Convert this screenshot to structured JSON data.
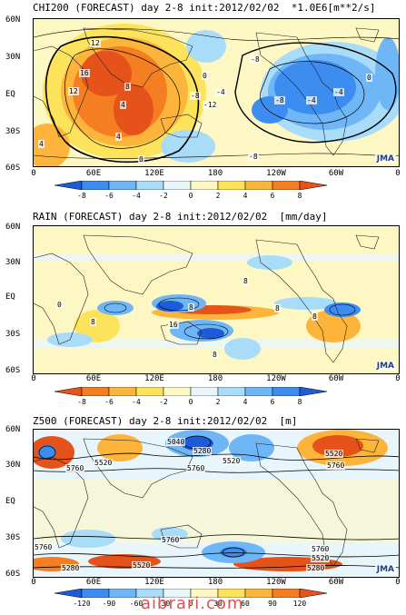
{
  "lat_labels": [
    "60N",
    "30N",
    "EQ",
    "30S",
    "60S"
  ],
  "lon_labels": [
    "0",
    "60E",
    "120E",
    "180",
    "120W",
    "60W",
    "0"
  ],
  "panels": [
    {
      "title": "CHI200 (FORECAST) day 2-8 init:2012/02/02  *1.0E6[m**2/s]",
      "colorbar_ticks": [
        "-8",
        "-6",
        "-4",
        "-2",
        "0",
        "2",
        "4",
        "6",
        "8"
      ],
      "colorbar_colors": [
        "#1e5bd8",
        "#3d8cf0",
        "#6fb6f7",
        "#a9dcf9",
        "#e8f6fb",
        "#fdf7c4",
        "#fde35c",
        "#fcb53a",
        "#f57e22",
        "#e6531a"
      ],
      "contour_labels": [
        "12",
        "16",
        "12",
        "8",
        "4",
        "4",
        "4",
        "0",
        "0",
        "-8",
        "-4",
        "-12",
        "-8",
        "-8",
        "-4",
        "0",
        "-8",
        "-4"
      ],
      "logo": "JMA"
    },
    {
      "title": "RAIN (FORECAST) day 2-8 init:2012/02/02  [mm/day]",
      "colorbar_ticks": [
        "-8",
        "-6",
        "-4",
        "-2",
        "0",
        "2",
        "4",
        "6",
        "8"
      ],
      "colorbar_colors": [
        "#e6531a",
        "#f57e22",
        "#fcb53a",
        "#fde35c",
        "#fdf7c4",
        "#e8f6fb",
        "#a9dcf9",
        "#6fb6f7",
        "#3d8cf0",
        "#1e5bd8"
      ],
      "contour_labels": [
        "8",
        "0",
        "8",
        "16",
        "8",
        "8",
        "8",
        "8"
      ],
      "logo": "JMA"
    },
    {
      "title": "Z500 (FORECAST) day 2-8 init:2012/02/02  [m]",
      "colorbar_ticks": [
        "-120",
        "-90",
        "-60",
        "-30",
        "0",
        "30",
        "60",
        "90",
        "120"
      ],
      "colorbar_colors": [
        "#1e5bd8",
        "#3d8cf0",
        "#6fb6f7",
        "#a9dcf9",
        "#e8f6fb",
        "#fdf7c4",
        "#fde35c",
        "#fcb53a",
        "#f57e22",
        "#e6531a"
      ],
      "contour_labels": [
        "5040",
        "5280",
        "5520",
        "5760",
        "5520",
        "5760",
        "5520",
        "5760",
        "5760",
        "5760",
        "5520",
        "5280",
        "5760",
        "5520",
        "5280"
      ],
      "logo": "JMA"
    }
  ],
  "watermark": "aibrari.com"
}
